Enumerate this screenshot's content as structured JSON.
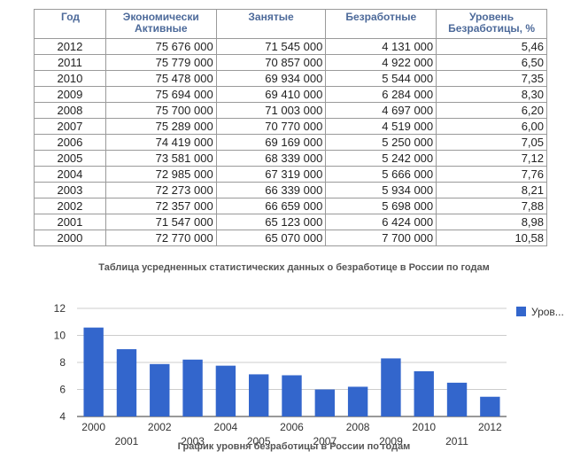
{
  "table": {
    "headers": [
      "Год",
      "Экономически\nАктивные",
      "Занятые",
      "Безработные",
      "Уровень\nБезработицы, %"
    ],
    "rows": [
      [
        "2012",
        "75 676 000",
        "71 545 000",
        "4 131 000",
        "5,46"
      ],
      [
        "2011",
        "75 779 000",
        "70 857 000",
        "4 922 000",
        "6,50"
      ],
      [
        "2010",
        "75 478 000",
        "69 934 000",
        "5 544 000",
        "7,35"
      ],
      [
        "2009",
        "75 694 000",
        "69 410 000",
        "6 284 000",
        "8,30"
      ],
      [
        "2008",
        "75 700 000",
        "71 003 000",
        "4 697 000",
        "6,20"
      ],
      [
        "2007",
        "75 289 000",
        "70 770 000",
        "4 519 000",
        "6,00"
      ],
      [
        "2006",
        "74 419 000",
        "69 169 000",
        "5 250 000",
        "7,05"
      ],
      [
        "2005",
        "73 581 000",
        "68 339 000",
        "5 242 000",
        "7,12"
      ],
      [
        "2004",
        "72 985 000",
        "67 319 000",
        "5 666 000",
        "7,76"
      ],
      [
        "2003",
        "72 273 000",
        "66 339 000",
        "5 934 000",
        "8,21"
      ],
      [
        "2002",
        "72 357 000",
        "66 659 000",
        "5 698 000",
        "7,88"
      ],
      [
        "2001",
        "71 547 000",
        "65 123 000",
        "6 424 000",
        "8,98"
      ],
      [
        "2000",
        "72 770 000",
        "65 070 000",
        "7 700 000",
        "10,58"
      ]
    ],
    "caption": "Таблица усредненных статистических данных о безработице в России по годам"
  },
  "chart_data": {
    "type": "bar",
    "title": "График уровня безработицы в России по годам",
    "categories": [
      "2000",
      "2001",
      "2002",
      "2003",
      "2004",
      "2005",
      "2006",
      "2007",
      "2008",
      "2009",
      "2010",
      "2011",
      "2012"
    ],
    "series": [
      {
        "name": "Уров...",
        "values": [
          10.58,
          8.98,
          7.88,
          8.21,
          7.76,
          7.12,
          7.05,
          6.0,
          6.2,
          8.3,
          7.35,
          6.5,
          5.46
        ]
      }
    ],
    "y_ticks": [
      "4",
      "6",
      "8",
      "10",
      "12"
    ],
    "ylim": [
      4,
      12
    ],
    "xlabel": "",
    "ylabel": "",
    "grid": true,
    "legend_position": "top-right",
    "bar_color": "#3366cc"
  }
}
